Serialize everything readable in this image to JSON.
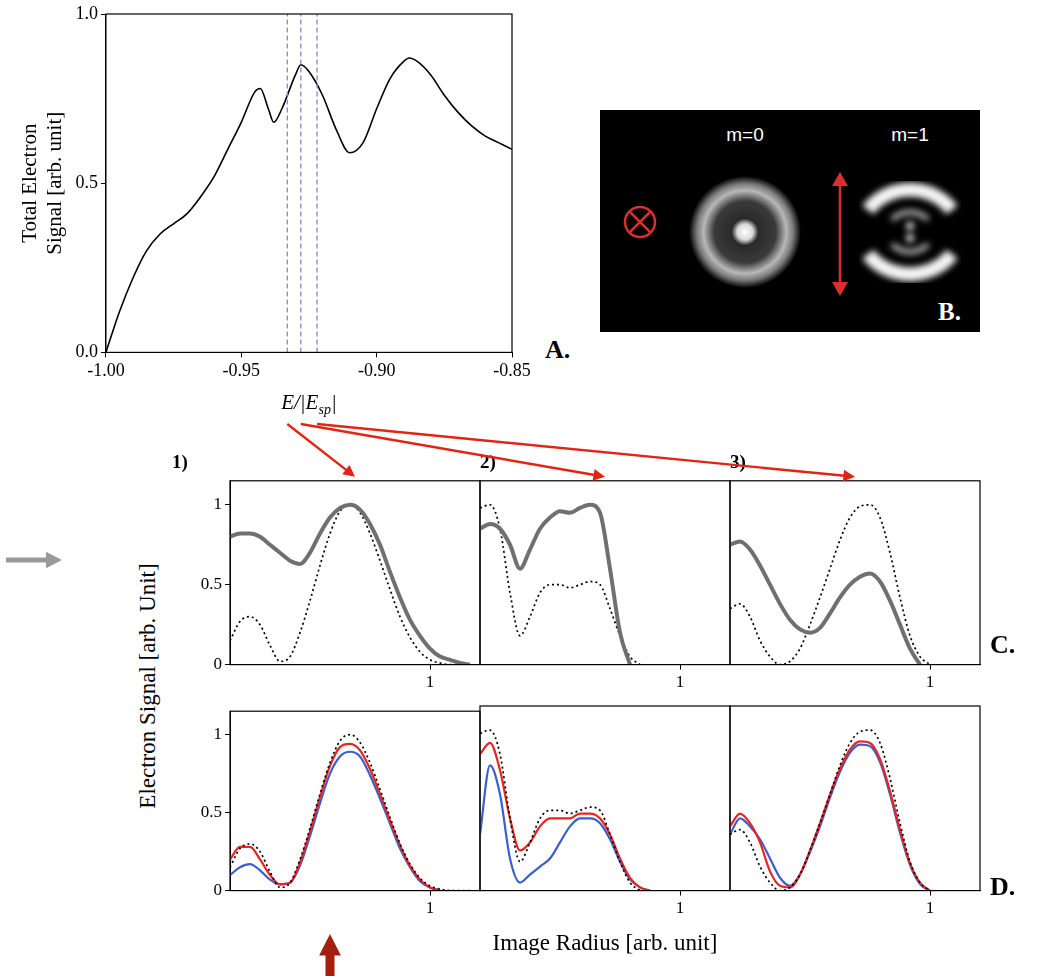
{
  "panel_letters": [
    "A.",
    "B.",
    "C.",
    "D."
  ],
  "image_panel": {
    "labels": [
      "m=0",
      "m=1"
    ]
  },
  "shared_y_label": "Electron Signal [arb. Unit]",
  "shared_x_label": "Image Radius [arb. unit]",
  "chart_data": [
    {
      "type": "line",
      "y_label": "Total Electron Signal [arb. unit]",
      "x_label": [
        "E/|E",
        "sp",
        "|"
      ],
      "x": [
        -1.0,
        -0.995,
        -0.99,
        -0.985,
        -0.98,
        -0.975,
        -0.97,
        -0.965,
        -0.96,
        -0.955,
        -0.95,
        -0.945,
        -0.943,
        -0.94,
        -0.938,
        -0.935,
        -0.93,
        -0.928,
        -0.925,
        -0.92,
        -0.915,
        -0.91,
        -0.905,
        -0.9,
        -0.895,
        -0.89,
        -0.888,
        -0.885,
        -0.88,
        -0.875,
        -0.87,
        -0.865,
        -0.86,
        -0.855,
        -0.85
      ],
      "values": [
        0.0,
        0.12,
        0.22,
        0.3,
        0.35,
        0.38,
        0.41,
        0.46,
        0.52,
        0.6,
        0.68,
        0.77,
        0.78,
        0.72,
        0.68,
        0.72,
        0.82,
        0.85,
        0.83,
        0.76,
        0.66,
        0.59,
        0.62,
        0.72,
        0.81,
        0.86,
        0.87,
        0.86,
        0.82,
        0.76,
        0.71,
        0.67,
        0.64,
        0.62,
        0.6
      ],
      "color": "#000000",
      "vlines": [
        -0.933,
        -0.928,
        -0.922
      ],
      "xlim": [
        -1.0,
        -0.85
      ],
      "xticks": [
        {
          "value": -1.0,
          "label": "-1.00"
        },
        -0.95,
        {
          "value": -0.9,
          "label": "-0.90"
        },
        -0.85
      ],
      "ylim": [
        0,
        1.0
      ],
      "yticks": [
        {
          "value": 0,
          "label": "0.0"
        },
        0.5,
        {
          "value": 1,
          "label": "1.0"
        }
      ],
      "grid": false
    },
    {
      "type": "line",
      "title": "1)",
      "x": [
        0,
        0.05,
        0.1,
        0.15,
        0.2,
        0.25,
        0.3,
        0.35,
        0.4,
        0.45,
        0.5,
        0.55,
        0.6,
        0.65,
        0.7,
        0.75,
        0.8,
        0.85,
        0.9,
        0.95,
        1.0,
        1.05,
        1.1,
        1.15,
        1.2
      ],
      "series": [
        {
          "color": "#707070",
          "line_style": "solid",
          "values": [
            0.8,
            0.82,
            0.82,
            0.8,
            0.75,
            0.7,
            0.65,
            0.63,
            0.7,
            0.82,
            0.92,
            0.98,
            1.0,
            0.97,
            0.88,
            0.75,
            0.58,
            0.42,
            0.28,
            0.18,
            0.1,
            0.05,
            0.03,
            0.01,
            0.0
          ]
        },
        {
          "color": "#000000",
          "line_style": "dotted",
          "values": [
            0.15,
            0.27,
            0.3,
            0.25,
            0.12,
            0.02,
            0.05,
            0.2,
            0.4,
            0.62,
            0.82,
            0.96,
            1.0,
            0.95,
            0.82,
            0.65,
            0.47,
            0.3,
            0.17,
            0.08,
            0.03,
            0.01,
            0,
            0,
            0
          ]
        }
      ],
      "xlim": [
        0,
        1.25
      ],
      "xticks": [
        1
      ],
      "ylim": [
        0,
        1.15
      ],
      "yticks": [
        0,
        0.5,
        1
      ],
      "grid": false
    },
    {
      "type": "line",
      "title": "2)",
      "x": [
        0,
        0.05,
        0.1,
        0.15,
        0.2,
        0.25,
        0.3,
        0.35,
        0.4,
        0.45,
        0.5,
        0.55,
        0.6,
        0.65,
        0.7,
        0.75,
        0.8,
        0.85,
        0.9,
        0.95,
        1.0,
        1.05,
        1.1,
        1.15,
        1.2
      ],
      "series": [
        {
          "color": "#707070",
          "line_style": "solid",
          "values": [
            0.85,
            0.88,
            0.85,
            0.75,
            0.6,
            0.72,
            0.85,
            0.92,
            0.96,
            0.95,
            0.98,
            1.0,
            0.95,
            0.6,
            0.2,
            0.0,
            null,
            null,
            null,
            null,
            null,
            null,
            null,
            null,
            null
          ]
        },
        {
          "color": "#000000",
          "line_style": "dotted",
          "values": [
            0.98,
            1.0,
            0.85,
            0.45,
            0.18,
            0.3,
            0.45,
            0.5,
            0.5,
            0.48,
            0.5,
            0.52,
            0.5,
            0.35,
            0.18,
            0.05,
            0.0,
            null,
            null,
            null,
            null,
            null,
            null,
            null,
            null
          ]
        }
      ],
      "xlim": [
        0,
        1.25
      ],
      "xticks": [
        1
      ],
      "ylim": [
        0,
        1.15
      ],
      "yticks": [
        0,
        0.5,
        1
      ],
      "grid": false,
      "tick_labels": "x"
    },
    {
      "type": "line",
      "title": "3)",
      "x": [
        0,
        0.05,
        0.1,
        0.15,
        0.2,
        0.25,
        0.3,
        0.35,
        0.4,
        0.45,
        0.5,
        0.55,
        0.6,
        0.65,
        0.7,
        0.75,
        0.8,
        0.85,
        0.9,
        0.95,
        1.0,
        1.05,
        1.1,
        1.15,
        1.2
      ],
      "series": [
        {
          "color": "#707070",
          "line_style": "solid",
          "values": [
            0.75,
            0.77,
            0.72,
            0.62,
            0.5,
            0.38,
            0.28,
            0.22,
            0.2,
            0.23,
            0.32,
            0.42,
            0.5,
            0.55,
            0.57,
            0.52,
            0.4,
            0.25,
            0.1,
            0.0,
            null,
            null,
            null,
            null,
            null
          ]
        },
        {
          "color": "#000000",
          "line_style": "dotted",
          "values": [
            0.35,
            0.38,
            0.3,
            0.15,
            0.05,
            0.0,
            0.02,
            0.1,
            0.25,
            0.42,
            0.6,
            0.78,
            0.92,
            0.99,
            1.0,
            0.92,
            0.7,
            0.42,
            0.18,
            0.05,
            0.0,
            null,
            null,
            null,
            null
          ]
        }
      ],
      "xlim": [
        0,
        1.25
      ],
      "xticks": [
        1
      ],
      "ylim": [
        0,
        1.15
      ],
      "yticks": [
        0,
        0.5,
        1
      ],
      "grid": false,
      "tick_labels": "x"
    },
    {
      "type": "line",
      "x": [
        0,
        0.05,
        0.1,
        0.15,
        0.2,
        0.25,
        0.3,
        0.35,
        0.4,
        0.45,
        0.5,
        0.55,
        0.6,
        0.65,
        0.7,
        0.75,
        0.8,
        0.85,
        0.9,
        0.95,
        1.0,
        1.05,
        1.1,
        1.15,
        1.2
      ],
      "series": [
        {
          "color": "#000000",
          "line_style": "dotted",
          "values": [
            0.15,
            0.27,
            0.3,
            0.25,
            0.12,
            0.02,
            0.05,
            0.2,
            0.4,
            0.62,
            0.82,
            0.96,
            1.0,
            0.95,
            0.82,
            0.65,
            0.47,
            0.3,
            0.17,
            0.08,
            0.03,
            0.01,
            0,
            0,
            0
          ]
        },
        {
          "color": "#e8251f",
          "line_style": "solid",
          "values": [
            0.2,
            0.28,
            0.28,
            0.2,
            0.1,
            0.04,
            0.05,
            0.18,
            0.38,
            0.6,
            0.8,
            0.92,
            0.94,
            0.9,
            0.78,
            0.62,
            0.45,
            0.29,
            0.16,
            0.07,
            0.02,
            0.0,
            null,
            null,
            null
          ]
        },
        {
          "color": "#3a5fcd",
          "line_style": "solid",
          "values": [
            0.1,
            0.15,
            0.17,
            0.13,
            0.07,
            0.04,
            0.05,
            0.16,
            0.35,
            0.56,
            0.75,
            0.86,
            0.89,
            0.86,
            0.74,
            0.59,
            0.43,
            0.27,
            0.15,
            0.06,
            0.02,
            0.0,
            null,
            null,
            null
          ]
        }
      ],
      "xlim": [
        0,
        1.25
      ],
      "xticks": [
        1
      ],
      "ylim": [
        0,
        1.15
      ],
      "yticks": [
        0,
        0.5,
        1
      ],
      "grid": false
    },
    {
      "type": "line",
      "x": [
        0,
        0.05,
        0.1,
        0.15,
        0.2,
        0.25,
        0.3,
        0.35,
        0.4,
        0.45,
        0.5,
        0.55,
        0.6,
        0.65,
        0.7,
        0.75,
        0.8,
        0.85,
        0.9,
        0.95,
        1.0,
        1.05,
        1.1,
        1.15,
        1.2
      ],
      "series": [
        {
          "color": "#000000",
          "line_style": "dotted",
          "values": [
            0.98,
            1.0,
            0.85,
            0.45,
            0.18,
            0.3,
            0.45,
            0.5,
            0.5,
            0.48,
            0.5,
            0.52,
            0.5,
            0.35,
            0.18,
            0.05,
            0.0,
            null,
            null,
            null,
            null,
            null,
            null,
            null,
            null
          ]
        },
        {
          "color": "#e8251f",
          "line_style": "solid",
          "values": [
            0.85,
            0.92,
            0.75,
            0.45,
            0.25,
            0.3,
            0.4,
            0.45,
            0.45,
            0.45,
            0.48,
            0.48,
            0.45,
            0.35,
            0.2,
            0.08,
            0.02,
            0.0,
            null,
            null,
            null,
            null,
            null,
            null,
            null
          ]
        },
        {
          "color": "#3a5fcd",
          "line_style": "solid",
          "values": [
            0.35,
            0.78,
            0.6,
            0.2,
            0.05,
            0.1,
            0.15,
            0.2,
            0.3,
            0.4,
            0.45,
            0.45,
            0.42,
            0.32,
            0.18,
            0.07,
            0.02,
            0.0,
            null,
            null,
            null,
            null,
            null,
            null,
            null
          ]
        }
      ],
      "xlim": [
        0,
        1.25
      ],
      "xticks": [
        1
      ],
      "ylim": [
        0,
        1.15
      ],
      "yticks": [
        0,
        0.5,
        1
      ],
      "grid": false,
      "tick_labels": "x"
    },
    {
      "type": "line",
      "x": [
        0,
        0.05,
        0.1,
        0.15,
        0.2,
        0.25,
        0.3,
        0.35,
        0.4,
        0.45,
        0.5,
        0.55,
        0.6,
        0.65,
        0.7,
        0.75,
        0.8,
        0.85,
        0.9,
        0.95,
        1.0,
        1.05,
        1.1,
        1.15,
        1.2
      ],
      "series": [
        {
          "color": "#000000",
          "line_style": "dotted",
          "values": [
            0.35,
            0.38,
            0.3,
            0.15,
            0.05,
            0.0,
            0.02,
            0.1,
            0.25,
            0.42,
            0.6,
            0.78,
            0.92,
            0.99,
            1.0,
            0.92,
            0.7,
            0.42,
            0.18,
            0.05,
            0.0,
            null,
            null,
            null,
            null
          ]
        },
        {
          "color": "#e8251f",
          "line_style": "solid",
          "values": [
            0.4,
            0.48,
            0.42,
            0.3,
            0.12,
            0.03,
            0.02,
            0.1,
            0.25,
            0.42,
            0.6,
            0.76,
            0.88,
            0.93,
            0.92,
            0.82,
            0.62,
            0.38,
            0.17,
            0.05,
            0.0,
            null,
            null,
            null,
            null
          ]
        },
        {
          "color": "#3a5fcd",
          "line_style": "solid",
          "values": [
            0.35,
            0.45,
            0.4,
            0.32,
            0.2,
            0.08,
            0.03,
            0.1,
            0.24,
            0.4,
            0.58,
            0.74,
            0.86,
            0.91,
            0.9,
            0.8,
            0.6,
            0.36,
            0.16,
            0.04,
            0.0,
            null,
            null,
            null,
            null
          ]
        }
      ],
      "xlim": [
        0,
        1.25
      ],
      "xticks": [
        1
      ],
      "ylim": [
        0,
        1.15
      ],
      "yticks": [
        0,
        0.5,
        1
      ],
      "grid": false,
      "tick_labels": "x"
    }
  ]
}
